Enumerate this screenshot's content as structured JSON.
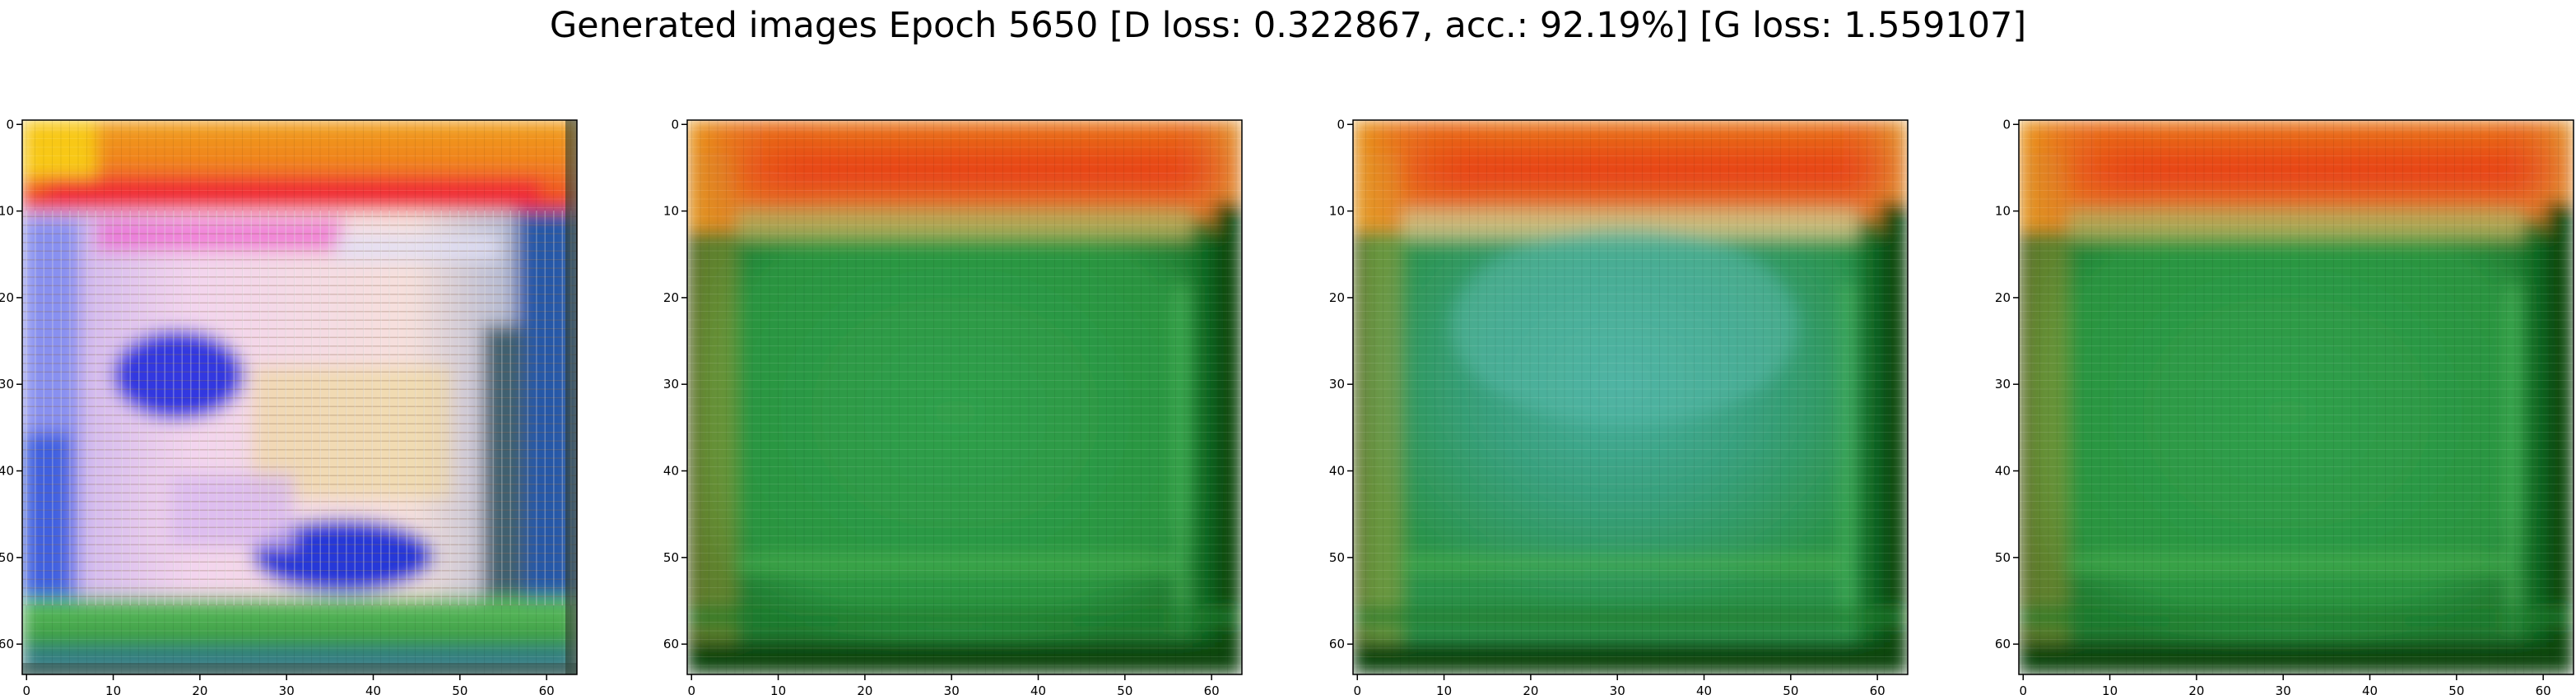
{
  "figure": {
    "suptitle": "Generated images Epoch 5650 [D loss: 0.322867, acc.: 92.19%] [G loss: 1.559107]"
  },
  "axes_ticks": {
    "x": [
      "0",
      "10",
      "20",
      "30",
      "40",
      "50",
      "60"
    ],
    "y": [
      "0",
      "10",
      "20",
      "30",
      "40",
      "50",
      "60"
    ]
  },
  "panels": [
    {
      "id": "sample-1",
      "description_colors": {
        "top_band": "#f07818",
        "center": "#f0c8e8",
        "blob": "#3038e0",
        "bottom_band": "#30b040",
        "right_edge": "#2858a8",
        "frame": "#203020"
      }
    },
    {
      "id": "sample-2",
      "description_colors": {
        "top_band": "#e84818",
        "center": "#2a9a44",
        "frame": "#0e4a14"
      }
    },
    {
      "id": "sample-3",
      "description_colors": {
        "top_band": "#e84818",
        "center": "#34a070",
        "frame": "#0e4a14"
      }
    },
    {
      "id": "sample-4",
      "description_colors": {
        "top_band": "#e84818",
        "center": "#2a9a44",
        "frame": "#0e4a14"
      }
    }
  ]
}
